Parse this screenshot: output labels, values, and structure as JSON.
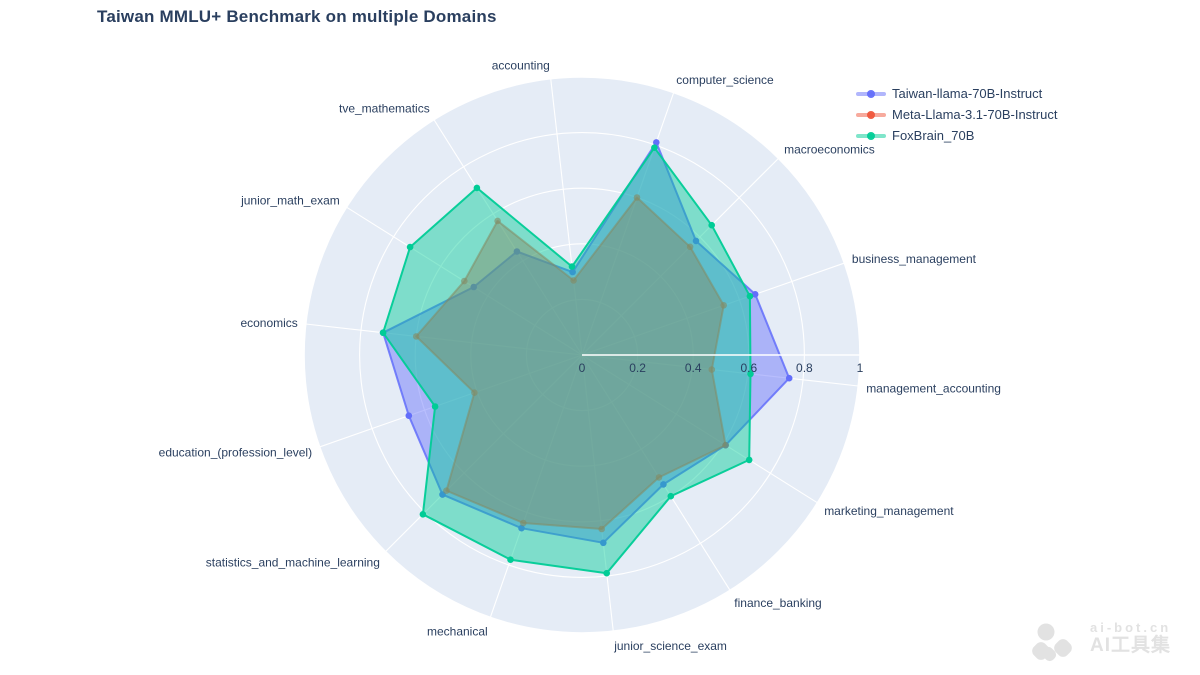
{
  "title": "Taiwan MMLU+ Benchmark on multiple Domains",
  "watermark": {
    "line1": "ai-bot.cn",
    "line2": "AI工具集"
  },
  "chart_data": {
    "type": "radar",
    "title": "Taiwan MMLU+ Benchmark on multiple Domains",
    "categories": [
      "management_accounting",
      "business_management",
      "macroeconomics",
      "computer_science",
      "accounting",
      "tve_mathematics",
      "junior_math_exam",
      "economics",
      "education_(profession_level)",
      "statistics_and_machine_learning",
      "mechanical",
      "junior_science_exam",
      "finance_banking",
      "marketing_management"
    ],
    "series": [
      {
        "name": "Taiwan-llama-70B-Instruct",
        "color": "#636EFA",
        "values": [
          0.75,
          0.66,
          0.58,
          0.81,
          0.3,
          0.44,
          0.46,
          0.72,
          0.66,
          0.71,
          0.66,
          0.68,
          0.55,
          0.61
        ]
      },
      {
        "name": "Meta-Llama-3.1-70B-Instruct",
        "color": "#EF553B",
        "values": [
          0.47,
          0.54,
          0.55,
          0.6,
          0.27,
          0.57,
          0.5,
          0.6,
          0.41,
          0.69,
          0.64,
          0.63,
          0.52,
          0.61
        ]
      },
      {
        "name": "FoxBrain_70B",
        "color": "#00CC96",
        "values": [
          0.61,
          0.64,
          0.66,
          0.79,
          0.32,
          0.71,
          0.73,
          0.72,
          0.56,
          0.81,
          0.78,
          0.79,
          0.6,
          0.71
        ]
      }
    ],
    "radial_ticks": [
      "0",
      "0.2",
      "0.4",
      "0.6",
      "0.8",
      "1"
    ],
    "radial_range": [
      0,
      1
    ],
    "rotation_deg": -6.4,
    "direction": "counterclockwise",
    "grid": true,
    "legend_position": "top-right",
    "polar_bg_color": "#E5ECF6",
    "grid_color": "#FFFFFF",
    "label_color": "#2A3F5F"
  }
}
